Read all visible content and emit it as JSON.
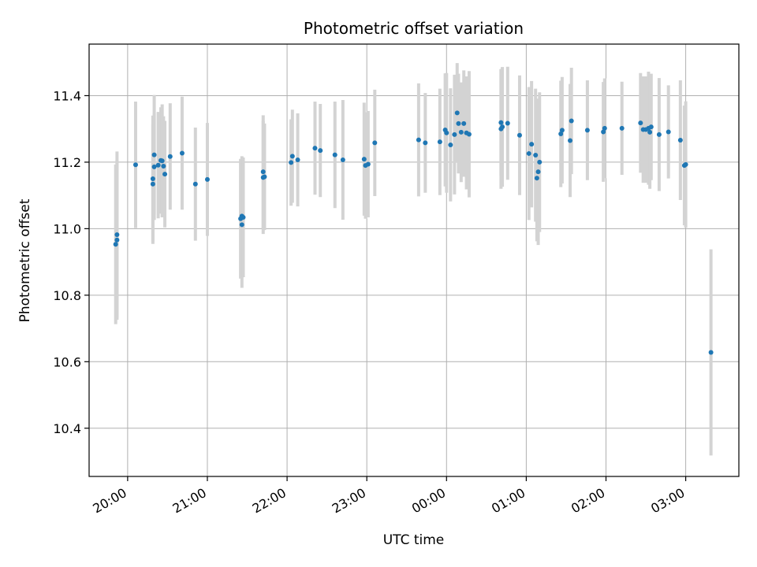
{
  "chart_data": {
    "type": "scatter",
    "title": "Photometric offset variation",
    "xlabel": "UTC time",
    "ylabel": "Photometric offset",
    "grid": true,
    "xlim": [
      "19:31",
      "03:40"
    ],
    "ylim": [
      10.255,
      11.555
    ],
    "x_ticks": [
      "20:00",
      "21:00",
      "22:00",
      "23:00",
      "00:00",
      "01:00",
      "02:00",
      "03:00"
    ],
    "y_ticks": [
      10.4,
      10.6,
      10.8,
      11.0,
      11.2,
      11.4
    ],
    "colors": {
      "point": "#1f77b4",
      "errorbar": "#d3d3d3",
      "grid": "#b0b0b0"
    },
    "series": [
      {
        "x": [
          "19:51",
          "19:52",
          "19:52",
          "20:06",
          "20:19",
          "20:19",
          "20:20",
          "20:20",
          "20:23",
          "20:25",
          "20:26",
          "20:27",
          "20:28",
          "20:32",
          "20:41",
          "20:51",
          "21:00",
          "21:25",
          "21:26",
          "21:26",
          "21:27",
          "21:42",
          "21:42",
          "21:43",
          "22:03",
          "22:04",
          "22:08",
          "22:21",
          "22:25",
          "22:36",
          "22:42",
          "22:58",
          "22:59",
          "23:01",
          "23:06",
          "23:39",
          "23:44",
          "23:55",
          "23:59",
          "24:00",
          "24:03",
          "24:06",
          "24:08",
          "24:09",
          "24:11",
          "24:13",
          "24:15",
          "24:17",
          "24:41",
          "24:41",
          "24:42",
          "24:46",
          "24:55",
          "25:02",
          "25:04",
          "25:07",
          "25:08",
          "25:09",
          "25:10",
          "25:26",
          "25:27",
          "25:33",
          "25:34",
          "25:46",
          "25:58",
          "25:59",
          "26:12",
          "26:26",
          "26:28",
          "26:30",
          "26:32",
          "26:33",
          "26:34",
          "26:40",
          "26:47",
          "26:56",
          "26:59",
          "27:00",
          "27:19"
        ],
        "y": [
          10.953,
          10.982,
          10.966,
          11.192,
          11.15,
          11.134,
          11.186,
          11.222,
          11.191,
          11.205,
          11.204,
          11.188,
          11.164,
          11.217,
          11.227,
          11.134,
          11.148,
          11.03,
          11.012,
          11.038,
          11.034,
          11.154,
          11.171,
          11.156,
          11.199,
          11.218,
          11.207,
          11.242,
          11.235,
          11.222,
          11.207,
          11.209,
          11.19,
          11.194,
          11.258,
          11.267,
          11.258,
          11.261,
          11.297,
          11.288,
          11.252,
          11.283,
          11.348,
          11.316,
          11.29,
          11.316,
          11.288,
          11.284,
          11.319,
          11.3,
          11.306,
          11.317,
          11.281,
          11.226,
          11.254,
          11.221,
          11.152,
          11.171,
          11.2,
          11.285,
          11.296,
          11.265,
          11.324,
          11.296,
          11.291,
          11.302,
          11.302,
          11.318,
          11.298,
          11.298,
          11.302,
          11.29,
          11.306,
          11.283,
          11.291,
          11.266,
          11.19,
          11.193,
          10.628
        ],
        "err": [
          0.24,
          0.25,
          0.24,
          0.19,
          0.19,
          0.18,
          0.16,
          0.18,
          0.16,
          0.16,
          0.17,
          0.15,
          0.16,
          0.16,
          0.17,
          0.17,
          0.17,
          0.18,
          0.19,
          0.18,
          0.18,
          0.17,
          0.17,
          0.16,
          0.13,
          0.14,
          0.14,
          0.14,
          0.14,
          0.16,
          0.18,
          0.17,
          0.16,
          0.16,
          0.16,
          0.17,
          0.15,
          0.16,
          0.17,
          0.18,
          0.17,
          0.18,
          0.15,
          0.15,
          0.15,
          0.16,
          0.17,
          0.19,
          0.16,
          0.18,
          0.18,
          0.17,
          0.18,
          0.2,
          0.19,
          0.2,
          0.19,
          0.22,
          0.21,
          0.16,
          0.16,
          0.17,
          0.16,
          0.15,
          0.15,
          0.15,
          0.14,
          0.15,
          0.16,
          0.16,
          0.17,
          0.17,
          0.16,
          0.17,
          0.14,
          0.18,
          0.18,
          0.19,
          0.31
        ]
      }
    ]
  }
}
